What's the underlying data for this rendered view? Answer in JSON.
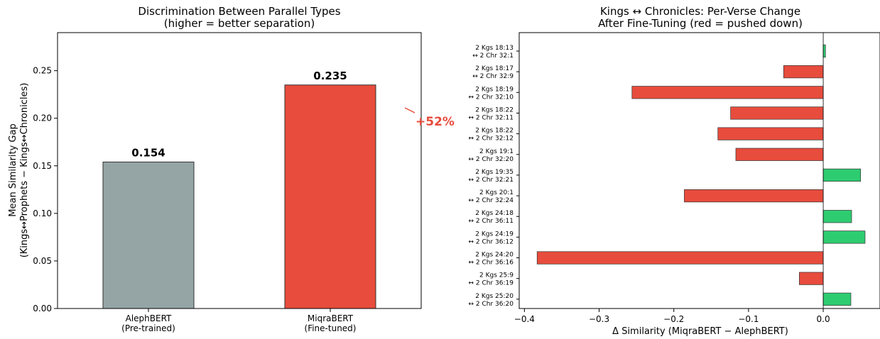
{
  "chart_data": [
    {
      "type": "bar",
      "title": "Discrimination Between Parallel Types",
      "subtitle": "(higher = better separation)",
      "xlabel": "",
      "ylabel": "Mean Similarity Gap",
      "ylabel2": "(Kings↔Prophets − Kings↔Chronicles)",
      "categories": [
        {
          "line1": "AlephBERT",
          "line2": "(Pre-trained)"
        },
        {
          "line1": "MiqraBERT",
          "line2": "(Fine-tuned)"
        }
      ],
      "values": [
        0.154,
        0.235
      ],
      "value_labels": [
        "0.154",
        "0.235"
      ],
      "colors": [
        "#95a5a6",
        "#e74c3c"
      ],
      "ylim": [
        0,
        0.29
      ],
      "yticks": [
        0.0,
        0.05,
        0.1,
        0.15,
        0.2,
        0.25
      ],
      "ytick_labels": [
        "0.00",
        "0.05",
        "0.10",
        "0.15",
        "0.20",
        "0.25"
      ],
      "annotation": {
        "text": "+52%",
        "color": "#e74c3c"
      },
      "grid": false
    },
    {
      "type": "bar",
      "orientation": "horizontal",
      "title": "Kings ↔ Chronicles: Per-Verse Change",
      "subtitle": "After Fine-Tuning (red = pushed down)",
      "xlabel": "Δ Similarity (MiqraBERT − AlephBERT)",
      "ylabel": "",
      "categories": [
        {
          "line1": "2 Kgs 18:13",
          "line2": "↔ 2 Chr 32:1"
        },
        {
          "line1": "2 Kgs 18:17",
          "line2": "↔ 2 Chr 32:9"
        },
        {
          "line1": "2 Kgs 18:19",
          "line2": "↔ 2 Chr 32:10"
        },
        {
          "line1": "2 Kgs 18:22",
          "line2": "↔ 2 Chr 32:11"
        },
        {
          "line1": "2 Kgs 18:22",
          "line2": "↔ 2 Chr 32:12"
        },
        {
          "line1": "2 Kgs 19:1",
          "line2": "↔ 2 Chr 32:20"
        },
        {
          "line1": "2 Kgs 19:35",
          "line2": "↔ 2 Chr 32:21"
        },
        {
          "line1": "2 Kgs 20:1",
          "line2": "↔ 2 Chr 32:24"
        },
        {
          "line1": "2 Kgs 24:18",
          "line2": "↔ 2 Chr 36:11"
        },
        {
          "line1": "2 Kgs 24:19",
          "line2": "↔ 2 Chr 36:12"
        },
        {
          "line1": "2 Kgs 24:20",
          "line2": "↔ 2 Chr 36:16"
        },
        {
          "line1": "2 Kgs 25:9",
          "line2": "↔ 2 Chr 36:19"
        },
        {
          "line1": "2 Kgs 25:20",
          "line2": "↔ 2 Chr 36:20"
        }
      ],
      "values": [
        0.003,
        -0.053,
        -0.256,
        -0.124,
        -0.141,
        -0.117,
        0.05,
        -0.186,
        0.038,
        0.056,
        -0.383,
        -0.032,
        0.037
      ],
      "positive_color": "#2ecc71",
      "negative_color": "#e74c3c",
      "xlim": [
        -0.407,
        0.076
      ],
      "xticks": [
        -0.4,
        -0.3,
        -0.2,
        -0.1,
        0.0
      ],
      "xtick_labels": [
        "−0.4",
        "−0.3",
        "−0.2",
        "−0.1",
        "0.0"
      ],
      "zero_line": true,
      "grid": false
    }
  ]
}
